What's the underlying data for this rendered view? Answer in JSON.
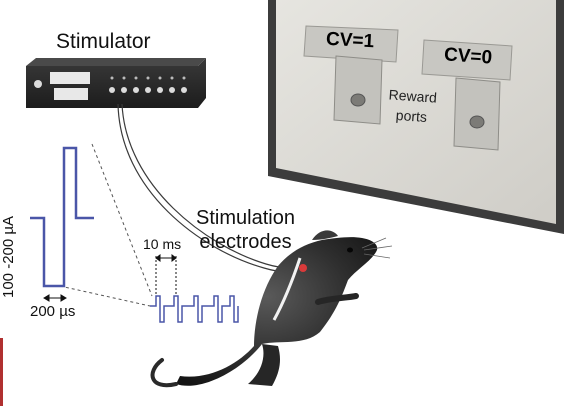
{
  "labels": {
    "stimulator": "Stimulator",
    "stim_electrodes_line1": "Stimulation",
    "stim_electrodes_line2": "electrodes",
    "interval": "10 ms",
    "pulse_width": "200 µs",
    "amplitude": "100 -200 µA",
    "cv1": "CV=1",
    "cv0": "CV=0",
    "reward_line1": "Reward",
    "reward_line2": "ports"
  },
  "colors": {
    "waveform": "#4a56a8",
    "wall": "#dcdbd6",
    "wall_shadow": "#4a4a4a",
    "stimulator_body": "#2c2c2c",
    "rat_body": "#2e2e2e",
    "electrode_highlight": "#d93a3a"
  }
}
